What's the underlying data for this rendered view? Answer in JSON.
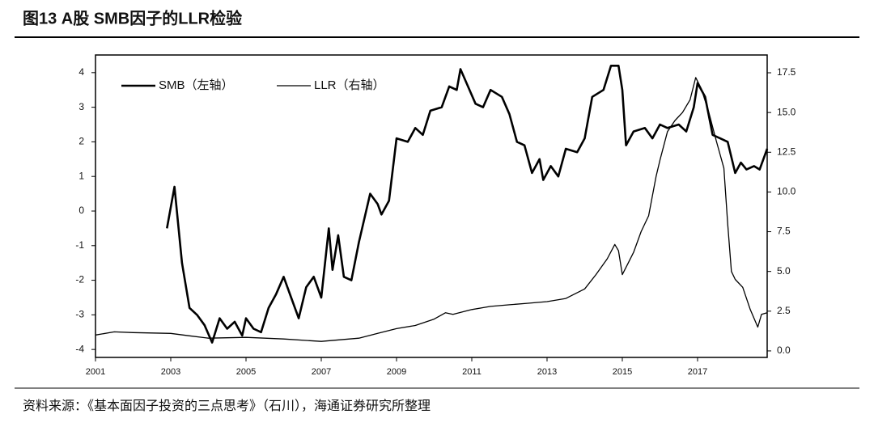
{
  "chart_data": {
    "type": "line",
    "title": "图13 A股 SMB因子的LLR检验",
    "source": "资料来源：《基本面因子投资的三点思考》（石川），海通证券研究所整理",
    "xlim": [
      2001,
      2018.85
    ],
    "xticks": [
      2001,
      2003,
      2005,
      2007,
      2009,
      2011,
      2013,
      2015,
      2017
    ],
    "ylim": [
      -4.23,
      4.51
    ],
    "yticks": [
      -4,
      -3,
      -2,
      -1,
      0,
      1,
      2,
      3,
      4
    ],
    "y2lim": [
      -0.41,
      18.62
    ],
    "y2ticks": [
      {
        "value": 0,
        "label": "0.0"
      },
      2.5,
      {
        "value": 5,
        "label": "5.0"
      },
      7.5,
      {
        "value": 10,
        "label": "10.0"
      },
      12.5,
      {
        "value": 15,
        "label": "15.0"
      },
      17.5
    ],
    "series": [
      {
        "name": "SMB（左轴）",
        "color": "#000000",
        "width": 2.6,
        "x": [
          2002.9,
          2003.1,
          2003.3,
          2003.5,
          2003.7,
          2003.9,
          2004.1,
          2004.3,
          2004.5,
          2004.7,
          2004.9,
          2005.0,
          2005.2,
          2005.4,
          2005.6,
          2005.8,
          2006.0,
          2006.2,
          2006.4,
          2006.6,
          2006.8,
          2007.0,
          2007.2,
          2007.3,
          2007.45,
          2007.6,
          2007.8,
          2008.0,
          2008.3,
          2008.5,
          2008.6,
          2008.8,
          2009.0,
          2009.3,
          2009.5,
          2009.7,
          2009.9,
          2010.2,
          2010.4,
          2010.6,
          2010.7,
          2010.9,
          2011.1,
          2011.3,
          2011.5,
          2011.8,
          2012.0,
          2012.2,
          2012.4,
          2012.6,
          2012.8,
          2012.9,
          2013.1,
          2013.3,
          2013.5,
          2013.8,
          2014.0,
          2014.2,
          2014.5,
          2014.7,
          2014.9,
          2015.0,
          2015.1,
          2015.3,
          2015.6,
          2015.8,
          2016.0,
          2016.2,
          2016.5,
          2016.7,
          2016.9,
          2017.0,
          2017.2,
          2017.4,
          2017.6,
          2017.8,
          2018.0,
          2018.15,
          2018.3,
          2018.5,
          2018.65,
          2018.85
        ],
        "values": [
          -0.5,
          0.7,
          -1.5,
          -2.8,
          -3.0,
          -3.3,
          -3.8,
          -3.1,
          -3.4,
          -3.2,
          -3.6,
          -3.1,
          -3.4,
          -3.5,
          -2.8,
          -2.4,
          -1.9,
          -2.5,
          -3.1,
          -2.2,
          -1.9,
          -2.5,
          -0.5,
          -1.7,
          -0.7,
          -1.9,
          -2.0,
          -0.9,
          0.5,
          0.2,
          -0.1,
          0.3,
          2.1,
          2.0,
          2.4,
          2.2,
          2.9,
          3.0,
          3.6,
          3.5,
          4.1,
          3.6,
          3.1,
          3.0,
          3.5,
          3.3,
          2.8,
          2.0,
          1.9,
          1.1,
          1.5,
          0.9,
          1.3,
          1.0,
          1.8,
          1.7,
          2.1,
          3.3,
          3.5,
          4.2,
          4.2,
          3.5,
          1.9,
          2.3,
          2.4,
          2.1,
          2.5,
          2.4,
          2.5,
          2.3,
          3.0,
          3.7,
          3.3,
          2.2,
          2.1,
          2.0,
          1.1,
          1.4,
          1.2,
          1.3,
          1.2,
          1.8
        ]
      },
      {
        "name": "LLR（右轴）",
        "color": "#000000",
        "width": 1.3,
        "axis": "y2",
        "x": [
          2001.0,
          2001.5,
          2002.0,
          2003.0,
          2003.5,
          2004.0,
          2005.0,
          2006.0,
          2007.0,
          2007.5,
          2008.0,
          2008.5,
          2009.0,
          2009.5,
          2010.0,
          2010.3,
          2010.5,
          2011.0,
          2011.5,
          2012.0,
          2012.5,
          2013.0,
          2013.5,
          2014.0,
          2014.3,
          2014.6,
          2014.8,
          2014.9,
          2015.0,
          2015.15,
          2015.3,
          2015.5,
          2015.7,
          2015.9,
          2016.0,
          2016.2,
          2016.4,
          2016.6,
          2016.8,
          2016.95,
          2017.1,
          2017.3,
          2017.5,
          2017.7,
          2017.8,
          2017.9,
          2018.0,
          2018.2,
          2018.4,
          2018.6,
          2018.7,
          2018.85
        ],
        "values": [
          1.0,
          1.2,
          1.15,
          1.1,
          0.95,
          0.8,
          0.85,
          0.75,
          0.6,
          0.7,
          0.8,
          1.1,
          1.4,
          1.6,
          2.0,
          2.4,
          2.3,
          2.6,
          2.8,
          2.9,
          3.0,
          3.1,
          3.3,
          3.9,
          4.8,
          5.8,
          6.7,
          6.3,
          4.8,
          5.5,
          6.2,
          7.5,
          8.5,
          11,
          12.0,
          13.8,
          14.5,
          15.0,
          15.8,
          17.2,
          16.5,
          15.0,
          13.2,
          11.5,
          8.0,
          5.0,
          4.5,
          4.0,
          2.6,
          1.5,
          2.3,
          2.4
        ]
      }
    ]
  }
}
